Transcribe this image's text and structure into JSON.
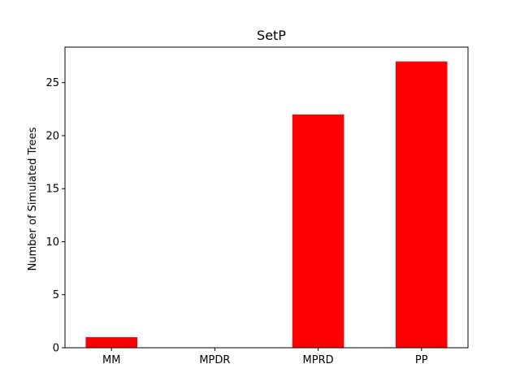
{
  "chart_data": {
    "type": "bar",
    "title": "SetP",
    "xlabel": "",
    "ylabel": "Number of Simulated Trees",
    "categories": [
      "MM",
      "MPDR",
      "MPRD",
      "PP"
    ],
    "values": [
      1,
      0,
      22,
      27
    ],
    "ylim": [
      0,
      28.35
    ],
    "yticks": [
      0,
      5,
      10,
      15,
      20,
      25
    ],
    "bar_color": "#ff0000",
    "grid": false,
    "legend": "none"
  }
}
